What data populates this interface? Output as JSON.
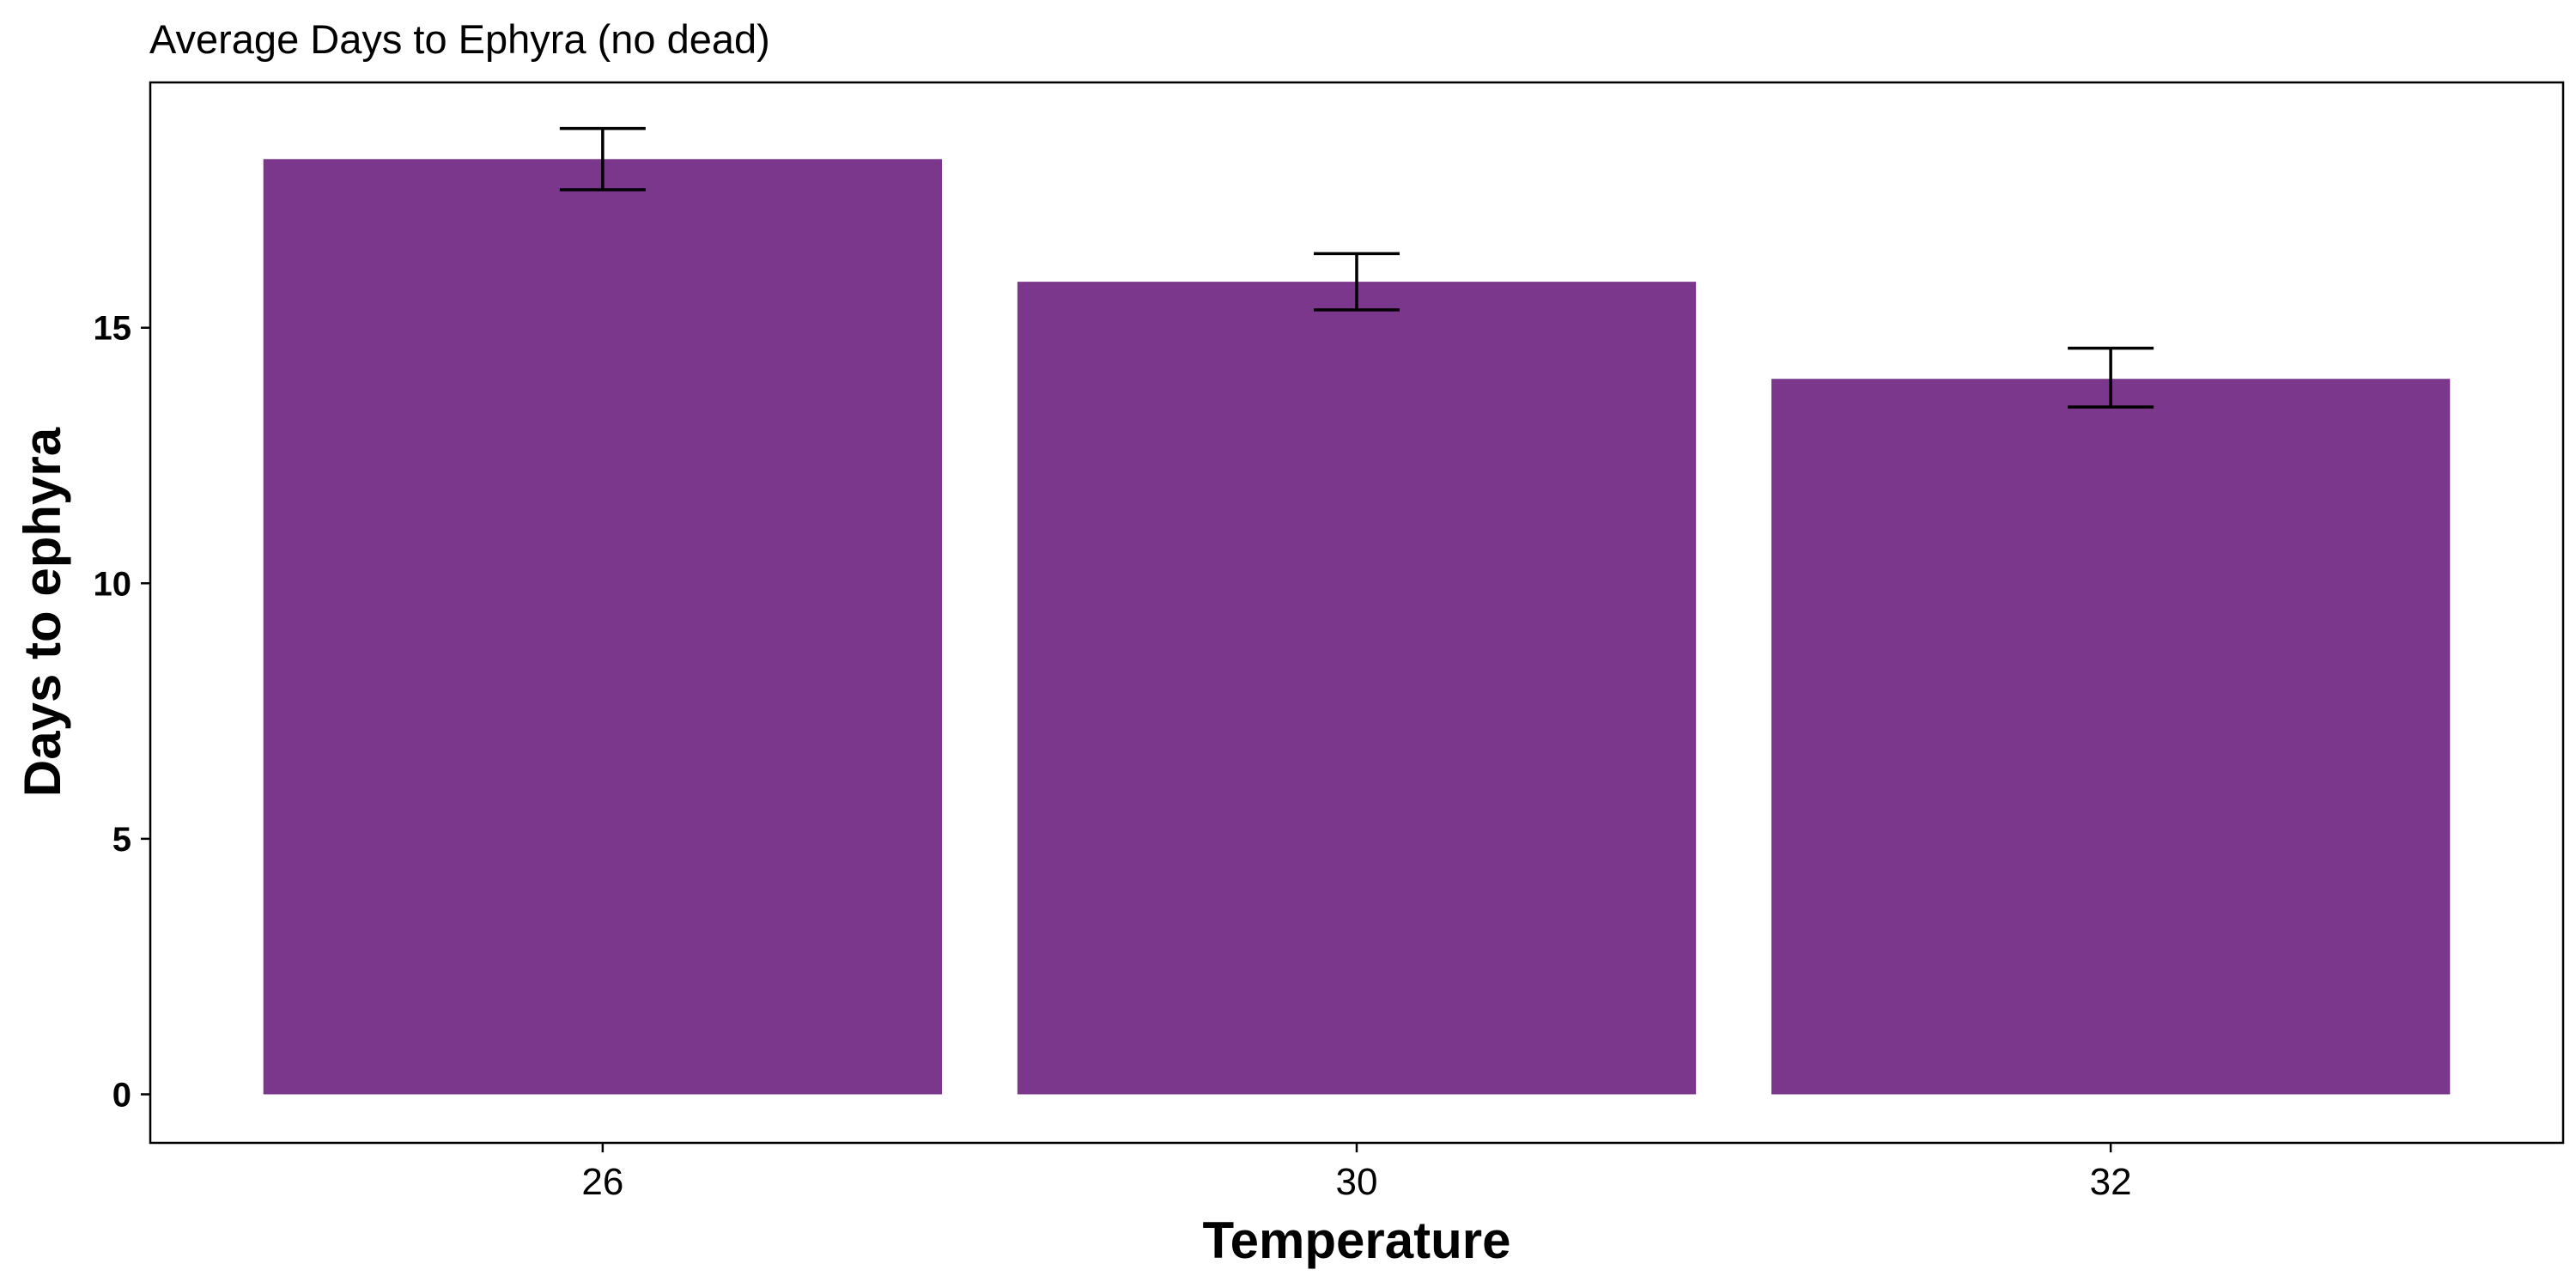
{
  "chart_data": {
    "type": "bar",
    "title": "Average Days to Ephyra (no dead)",
    "xlabel": "Temperature",
    "ylabel": "Days to ephyra",
    "categories": [
      "26",
      "30",
      "32"
    ],
    "values": [
      18.3,
      15.9,
      14.0
    ],
    "error_low": [
      17.7,
      15.35,
      13.45
    ],
    "error_high": [
      18.9,
      16.45,
      14.6
    ],
    "ylim": [
      -0.95,
      19.8
    ],
    "yticks": [
      0,
      5,
      10,
      15
    ],
    "grid": false,
    "legend": "none",
    "bar_color": "#7b378b",
    "error_color": "#000000"
  }
}
